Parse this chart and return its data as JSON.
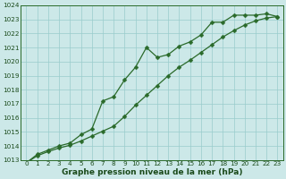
{
  "x": [
    0,
    1,
    2,
    3,
    4,
    5,
    6,
    7,
    8,
    9,
    10,
    11,
    12,
    13,
    14,
    15,
    16,
    17,
    18,
    19,
    20,
    21,
    22,
    23
  ],
  "line1_jagged": [
    1012.8,
    1013.4,
    1013.7,
    1014.0,
    1014.2,
    1014.8,
    1015.2,
    1017.2,
    1017.5,
    1018.7,
    1019.6,
    1021.0,
    1020.3,
    1020.5,
    1021.1,
    1021.4,
    1021.9,
    1022.8,
    1022.8,
    1023.3,
    1023.3,
    1023.3,
    1023.4,
    1023.2
  ],
  "line2_smooth": [
    1012.8,
    1013.3,
    1013.6,
    1013.85,
    1014.05,
    1014.35,
    1014.7,
    1015.05,
    1015.4,
    1016.1,
    1016.9,
    1017.6,
    1018.3,
    1019.0,
    1019.6,
    1020.1,
    1020.65,
    1021.2,
    1021.75,
    1022.2,
    1022.6,
    1022.9,
    1023.1,
    1023.2
  ],
  "ylim": [
    1013,
    1024
  ],
  "xlim_min": -0.5,
  "xlim_max": 23.5,
  "yticks": [
    1013,
    1014,
    1015,
    1016,
    1017,
    1018,
    1019,
    1020,
    1021,
    1022,
    1023,
    1024
  ],
  "xticks": [
    0,
    1,
    2,
    3,
    4,
    5,
    6,
    7,
    8,
    9,
    10,
    11,
    12,
    13,
    14,
    15,
    16,
    17,
    18,
    19,
    20,
    21,
    22,
    23
  ],
  "line_color": "#2a6a2a",
  "bg_color": "#cce8e8",
  "grid_color": "#99cccc",
  "text_color": "#1a4a1a",
  "xlabel": "Graphe pression niveau de la mer (hPa)",
  "xlabel_fontsize": 6.5,
  "tick_fontsize": 5.2,
  "linewidth": 0.9,
  "markersize": 2.5
}
